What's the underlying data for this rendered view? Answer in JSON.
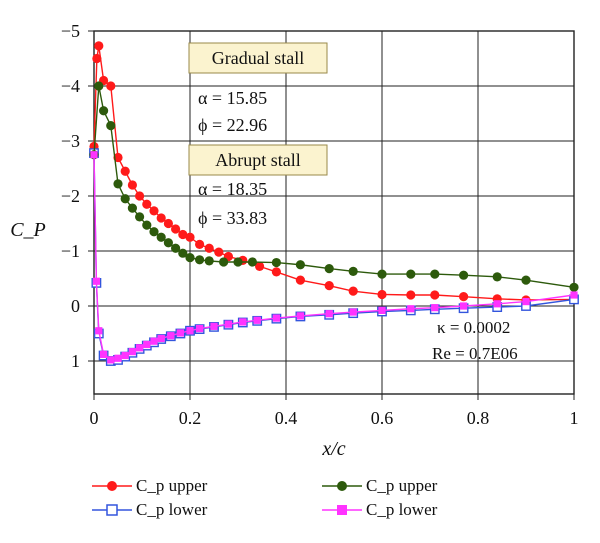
{
  "chart_data": {
    "type": "line",
    "xlabel": "x/c",
    "ylabel": "C_P",
    "x_ticks": [
      "0",
      "0.2",
      "0.4",
      "0.6",
      "0.8",
      "1"
    ],
    "y_ticks": [
      "−5",
      "−4",
      "−3",
      "−2",
      "−1",
      "0",
      "1"
    ],
    "xlim": [
      0,
      1
    ],
    "ylim": [
      -5,
      1.6
    ],
    "y_inverted": true,
    "grid": true,
    "legend_position": "bottom",
    "annotations": {
      "gradual_label": "Gradual stall",
      "gradual_alpha": "α = 15.85",
      "gradual_phi": "ϕ = 22.96",
      "abrupt_label": "Abrupt stall",
      "abrupt_alpha": "α = 18.35",
      "abrupt_phi": "ϕ = 33.83",
      "kappa": "κ = 0.0002",
      "re": "Re = 0.7E06"
    },
    "series": [
      {
        "name": "C_p upper",
        "color": "#ff1a1a",
        "marker": "circle-filled",
        "x": [
          0.0,
          0.006,
          0.01,
          0.02,
          0.035,
          0.05,
          0.065,
          0.08,
          0.095,
          0.11,
          0.125,
          0.14,
          0.155,
          0.17,
          0.185,
          0.2,
          0.22,
          0.24,
          0.26,
          0.28,
          0.31,
          0.345,
          0.38,
          0.43,
          0.49,
          0.54,
          0.6,
          0.66,
          0.71,
          0.77,
          0.84,
          0.9,
          1.0
        ],
        "y": [
          -2.9,
          -4.5,
          -4.73,
          -4.1,
          -4.0,
          -2.7,
          -2.45,
          -2.2,
          -2.0,
          -1.85,
          -1.73,
          -1.6,
          -1.5,
          -1.4,
          -1.3,
          -1.25,
          -1.12,
          -1.05,
          -0.98,
          -0.9,
          -0.83,
          -0.72,
          -0.62,
          -0.47,
          -0.37,
          -0.27,
          -0.21,
          -0.2,
          -0.2,
          -0.17,
          -0.13,
          -0.11,
          -0.12
        ]
      },
      {
        "name": "C_p lower",
        "color": "#3355dd",
        "marker": "square-open",
        "x": [
          0.0,
          0.005,
          0.01,
          0.02,
          0.035,
          0.05,
          0.065,
          0.08,
          0.095,
          0.11,
          0.125,
          0.14,
          0.16,
          0.18,
          0.2,
          0.22,
          0.25,
          0.28,
          0.31,
          0.34,
          0.38,
          0.43,
          0.49,
          0.54,
          0.6,
          0.66,
          0.71,
          0.77,
          0.84,
          0.9,
          1.0
        ],
        "y": [
          -2.78,
          -0.42,
          0.5,
          0.9,
          1.0,
          0.98,
          0.92,
          0.85,
          0.78,
          0.72,
          0.66,
          0.6,
          0.55,
          0.5,
          0.45,
          0.42,
          0.38,
          0.34,
          0.3,
          0.27,
          0.23,
          0.19,
          0.16,
          0.13,
          0.1,
          0.08,
          0.06,
          0.04,
          0.02,
          0.0,
          -0.12
        ]
      },
      {
        "name": "C_p upper",
        "color": "#2d5a0c",
        "marker": "circle-filled",
        "x": [
          0.0,
          0.01,
          0.02,
          0.035,
          0.05,
          0.065,
          0.08,
          0.095,
          0.11,
          0.125,
          0.14,
          0.155,
          0.17,
          0.185,
          0.2,
          0.22,
          0.24,
          0.27,
          0.3,
          0.33,
          0.38,
          0.43,
          0.49,
          0.54,
          0.6,
          0.66,
          0.71,
          0.77,
          0.84,
          0.9,
          1.0
        ],
        "y": [
          -2.75,
          -4.0,
          -3.55,
          -3.28,
          -2.22,
          -1.95,
          -1.78,
          -1.62,
          -1.47,
          -1.35,
          -1.25,
          -1.15,
          -1.05,
          -0.96,
          -0.88,
          -0.84,
          -0.82,
          -0.8,
          -0.8,
          -0.8,
          -0.79,
          -0.75,
          -0.68,
          -0.63,
          -0.58,
          -0.58,
          -0.58,
          -0.56,
          -0.53,
          -0.47,
          -0.34
        ]
      },
      {
        "name": "C_p lower",
        "color": "#ff33ff",
        "marker": "square-filled",
        "x": [
          0.0,
          0.005,
          0.01,
          0.02,
          0.035,
          0.05,
          0.065,
          0.08,
          0.095,
          0.11,
          0.125,
          0.14,
          0.16,
          0.18,
          0.2,
          0.22,
          0.25,
          0.28,
          0.31,
          0.34,
          0.38,
          0.43,
          0.49,
          0.54,
          0.6,
          0.66,
          0.71,
          0.77,
          0.84,
          0.9,
          1.0
        ],
        "y": [
          -2.75,
          -0.45,
          0.45,
          0.88,
          0.98,
          0.95,
          0.9,
          0.83,
          0.76,
          0.7,
          0.64,
          0.59,
          0.54,
          0.49,
          0.45,
          0.41,
          0.37,
          0.33,
          0.29,
          0.26,
          0.22,
          0.18,
          0.14,
          0.11,
          0.08,
          0.05,
          0.03,
          0.0,
          -0.04,
          -0.08,
          -0.2
        ]
      }
    ]
  },
  "legend": {
    "upper_red": "C_p upper",
    "lower_blue": "C_p lower",
    "upper_green": "C_p upper",
    "lower_magenta": "C_p lower"
  }
}
